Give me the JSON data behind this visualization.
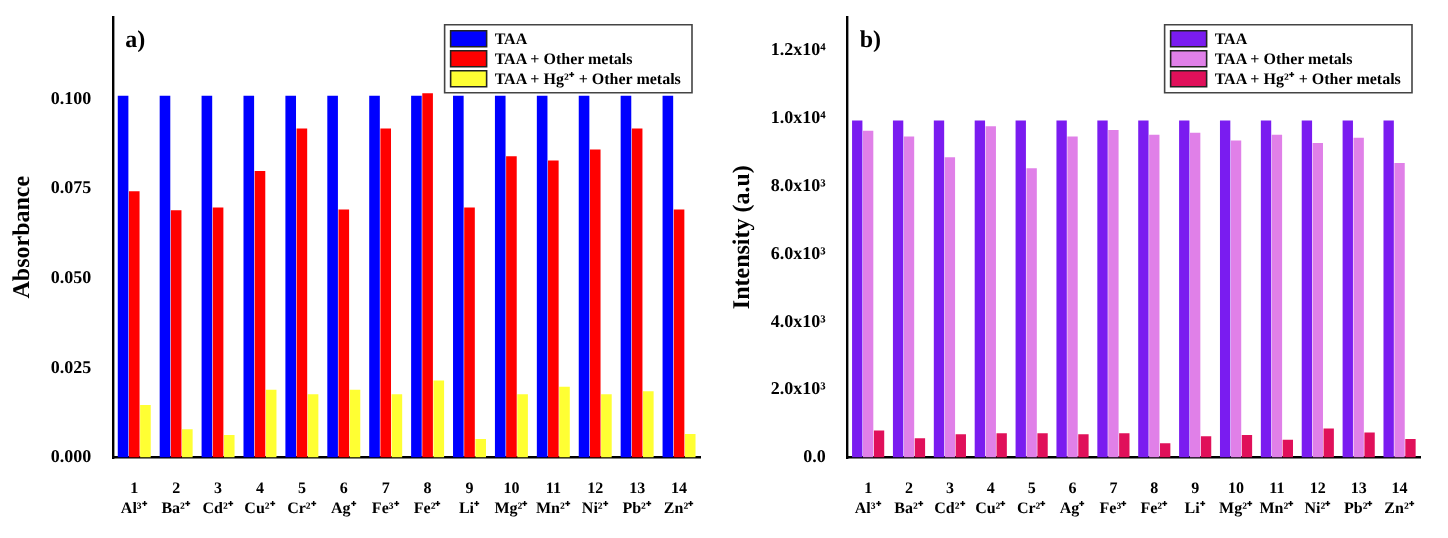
{
  "chart_data": [
    {
      "type": "bar",
      "annotations": [
        "a)"
      ],
      "ylabel": "Absorbance",
      "categories": [
        "1\nAl³⁺",
        "2\nBa²⁺",
        "3\nCd²⁺",
        "4\nCu²⁺",
        "5\nCr²⁺",
        "6\nAg⁺",
        "7\nFe³⁺",
        "8\nFe²⁺",
        "9\nLi⁺",
        "10\nMg²⁺",
        "11\nMn²⁺",
        "12\nNi²⁺",
        "13\nPb²⁺",
        "14\nZn²⁺"
      ],
      "series": [
        {
          "name": "TAA",
          "color": "#0000ff",
          "values": [
            0.101,
            0.101,
            0.101,
            0.101,
            0.101,
            0.101,
            0.101,
            0.101,
            0.101,
            0.101,
            0.101,
            0.101,
            0.101,
            0.101
          ]
        },
        {
          "name": "TAA + Other metals",
          "color": "#ff0000",
          "values": [
            0.0743,
            0.069,
            0.0698,
            0.08,
            0.0918,
            0.0692,
            0.0918,
            0.1017,
            0.0698,
            0.0841,
            0.0829,
            0.086,
            0.0918,
            0.0692
          ]
        },
        {
          "name": "TAA + Hg²⁺ + Other metals",
          "color": "#ffff33",
          "values": [
            0.0147,
            0.0079,
            0.0063,
            0.0189,
            0.0177,
            0.0189,
            0.0177,
            0.0215,
            0.0052,
            0.0177,
            0.0198,
            0.0177,
            0.0185,
            0.0066
          ]
        }
      ],
      "ylim": [
        0,
        0.123
      ],
      "yticks": [
        {
          "value": 0,
          "label": "0.000"
        },
        {
          "value": 0.025,
          "label": "0.025"
        },
        {
          "value": 0.05,
          "label": "0.050"
        },
        {
          "value": 0.075,
          "label": "0.075"
        },
        {
          "value": 0.1,
          "label": "0.100"
        }
      ],
      "legend": "top right"
    },
    {
      "type": "bar",
      "annotations": [
        "b)"
      ],
      "ylabel": "Intensity (a.u)",
      "categories": [
        "1\nAl³⁺",
        "2\nBa²⁺",
        "3\nCd²⁺",
        "4\nCu²⁺",
        "5\nCr²⁺",
        "6\nAg⁺",
        "7\nFe³⁺",
        "8\nFe²⁺",
        "9\nLi⁺",
        "10\nMg²⁺",
        "11\nMn²⁺",
        "12\nNi²⁺",
        "13\nPb²⁺",
        "14\nZn²⁺"
      ],
      "series": [
        {
          "name": "TAA",
          "color": "#7a1cf0",
          "values": [
            9940,
            9940,
            9940,
            9940,
            9940,
            9940,
            9940,
            9940,
            9940,
            9940,
            9940,
            9940,
            9940,
            9940
          ]
        },
        {
          "name": "TAA + Other metals",
          "color": "#e080e8",
          "values": [
            9640,
            9470,
            8860,
            9770,
            8530,
            9470,
            9660,
            9520,
            9580,
            9350,
            9520,
            9280,
            9430,
            8690
          ]
        },
        {
          "name": "TAA + Hg²⁺ + Other metals",
          "color": "#e0105a",
          "values": [
            800,
            570,
            690,
            720,
            720,
            690,
            720,
            420,
            630,
            670,
            530,
            860,
            740,
            550
          ]
        }
      ],
      "ylim": [
        0,
        13000
      ],
      "yticks": [
        {
          "value": 0,
          "label": "0.0"
        },
        {
          "value": 2000,
          "label": "2.0x10³"
        },
        {
          "value": 4000,
          "label": "4.0x10³"
        },
        {
          "value": 6000,
          "label": "6.0x10³"
        },
        {
          "value": 8000,
          "label": "8.0x10³"
        },
        {
          "value": 10000,
          "label": "1.0x10⁴"
        },
        {
          "value": 12000,
          "label": "1.2x10⁴"
        }
      ],
      "legend": "top right"
    }
  ]
}
